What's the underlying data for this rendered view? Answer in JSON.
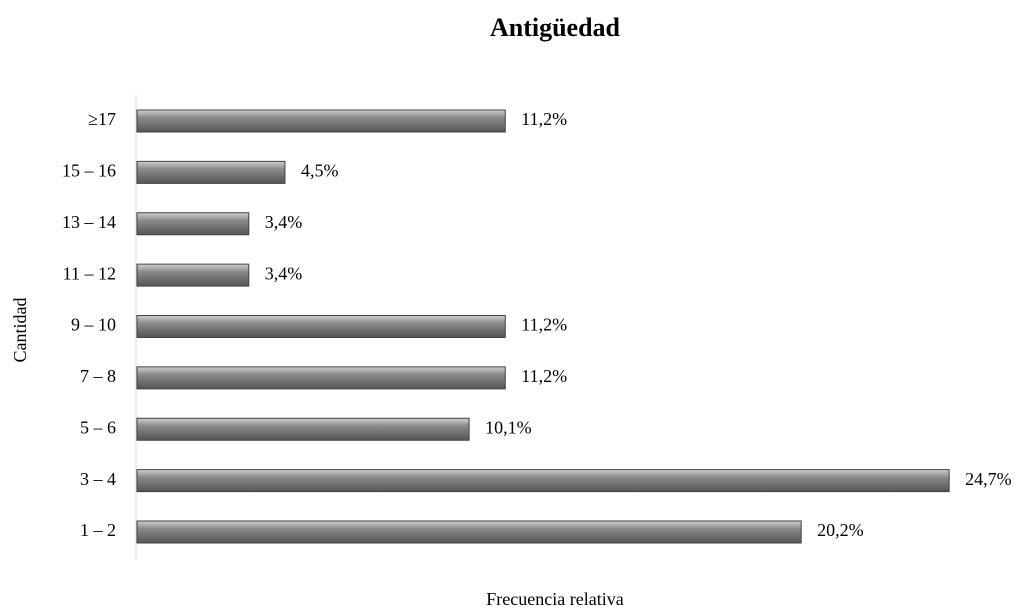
{
  "chart_data": {
    "type": "hbar",
    "title": "Antigüedad",
    "x_label": "Frecuencia relativa",
    "y_label": "Cantidad",
    "categories": [
      "1 – 2",
      "3 – 4",
      "5 – 6",
      "7 – 8",
      "9 – 10",
      "11 – 12",
      "13 – 14",
      "15 – 16",
      "≥17"
    ],
    "values": [
      20.2,
      24.7,
      10.1,
      11.2,
      11.2,
      3.4,
      3.4,
      4.5,
      11.2
    ],
    "value_labels": [
      "20,2%",
      "24,7%",
      "10,1%",
      "11,2%",
      "11,2%",
      "3,4%",
      "3,4%",
      "4,5%",
      "11,2%"
    ],
    "color": "#7f7f7f",
    "xlim": [
      0,
      25
    ]
  }
}
